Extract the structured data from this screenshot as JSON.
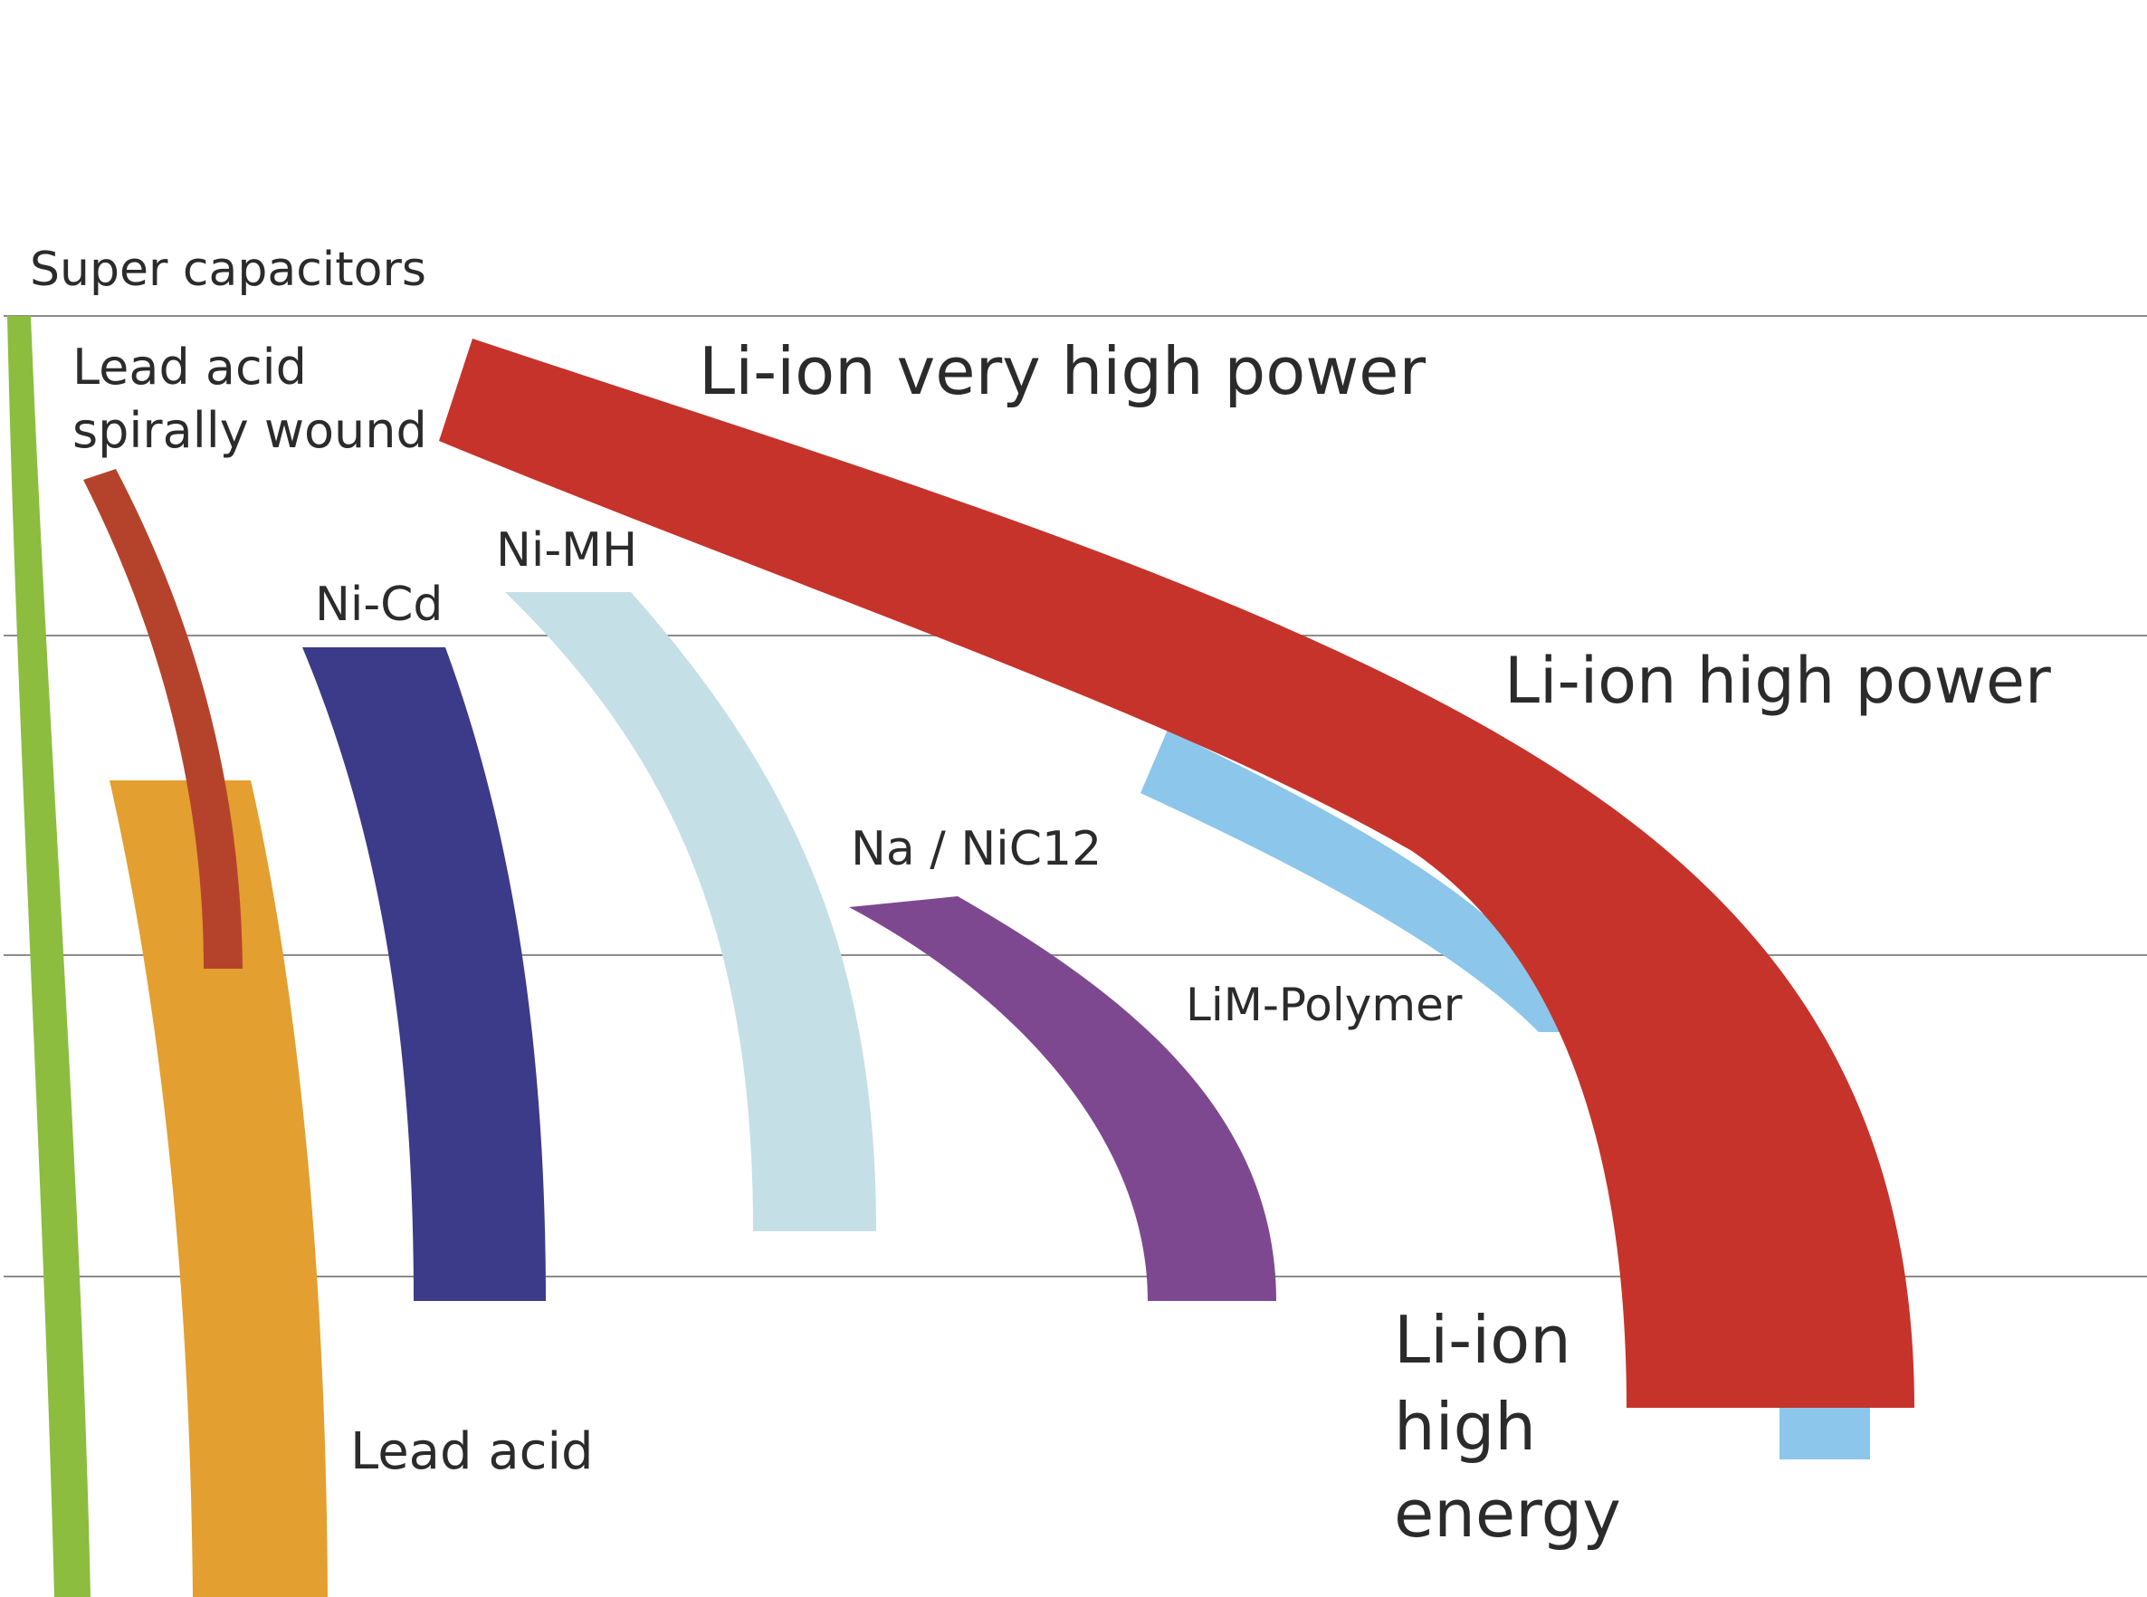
{
  "chart_data": {
    "type": "area",
    "title": "",
    "xlabel": "",
    "ylabel": "",
    "grid": true,
    "legend": "none",
    "series": [
      {
        "name": "Super capacitors",
        "label_lines": [
          "Super capacitors"
        ],
        "color": "#8cbd3f"
      },
      {
        "name": "Lead acid spirally wound",
        "label_lines": [
          "Lead acid",
          "spirally wound"
        ],
        "color": "#b5432c"
      },
      {
        "name": "Lead acid",
        "label_lines": [
          "Lead acid"
        ],
        "color": "#e39f2f"
      },
      {
        "name": "Ni-Cd",
        "label_lines": [
          "Ni-Cd"
        ],
        "color": "#3b3b8a"
      },
      {
        "name": "Ni-MH",
        "label_lines": [
          "Ni-MH"
        ],
        "color": "#c5dfe6"
      },
      {
        "name": "Na / NiC12",
        "label_lines": [
          "Na / NiC12"
        ],
        "color": "#7e4891"
      },
      {
        "name": "LiM-Polymer",
        "label_lines": [
          "LiM-Polymer"
        ],
        "color": "#8cc6ea"
      },
      {
        "name": "Li-ion very high power",
        "label_lines": [
          "Li-ion very high power"
        ],
        "color": "#c6332b"
      },
      {
        "name": "Li-ion high power",
        "label_lines": [
          "Li-ion high power"
        ],
        "color": "#c6332b"
      },
      {
        "name": "Li-ion high energy",
        "label_lines": [
          "Li-ion",
          "high",
          "energy"
        ],
        "color": "#c6332b"
      }
    ]
  }
}
